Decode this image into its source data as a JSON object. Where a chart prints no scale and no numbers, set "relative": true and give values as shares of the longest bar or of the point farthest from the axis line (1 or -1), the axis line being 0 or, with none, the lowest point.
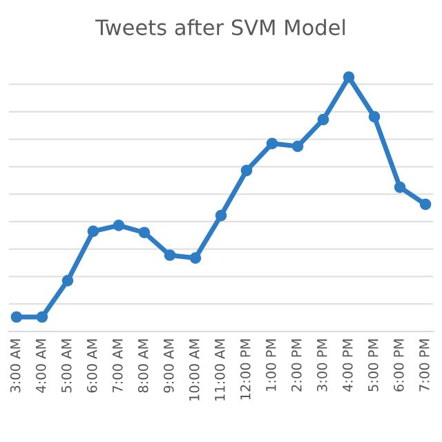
{
  "chart_data": {
    "type": "line",
    "title": "Tweets after SVM Model",
    "relative": true,
    "categories": [
      "3:00 AM",
      "4:00 AM",
      "5:00 AM",
      "6:00 AM",
      "7:00 AM",
      "8:00 AM",
      "9:00 AM",
      "10:00 AM",
      "11:00 AM",
      "12:00 PM",
      "1:00 PM",
      "2:00 PM",
      "3:00 PM",
      "4:00 PM",
      "5:00 PM",
      "6:00 PM",
      "7:00 PM"
    ],
    "series": [
      {
        "color": "#2e7dc4",
        "values": [
          0.057,
          0.057,
          0.2,
          0.394,
          0.417,
          0.389,
          0.3,
          0.289,
          0.456,
          0.633,
          0.739,
          0.728,
          0.833,
          1,
          0.844,
          0.567,
          0.5
        ]
      }
    ],
    "grid": "y",
    "marker": "circle",
    "line_style": "solid",
    "legend": false
  }
}
